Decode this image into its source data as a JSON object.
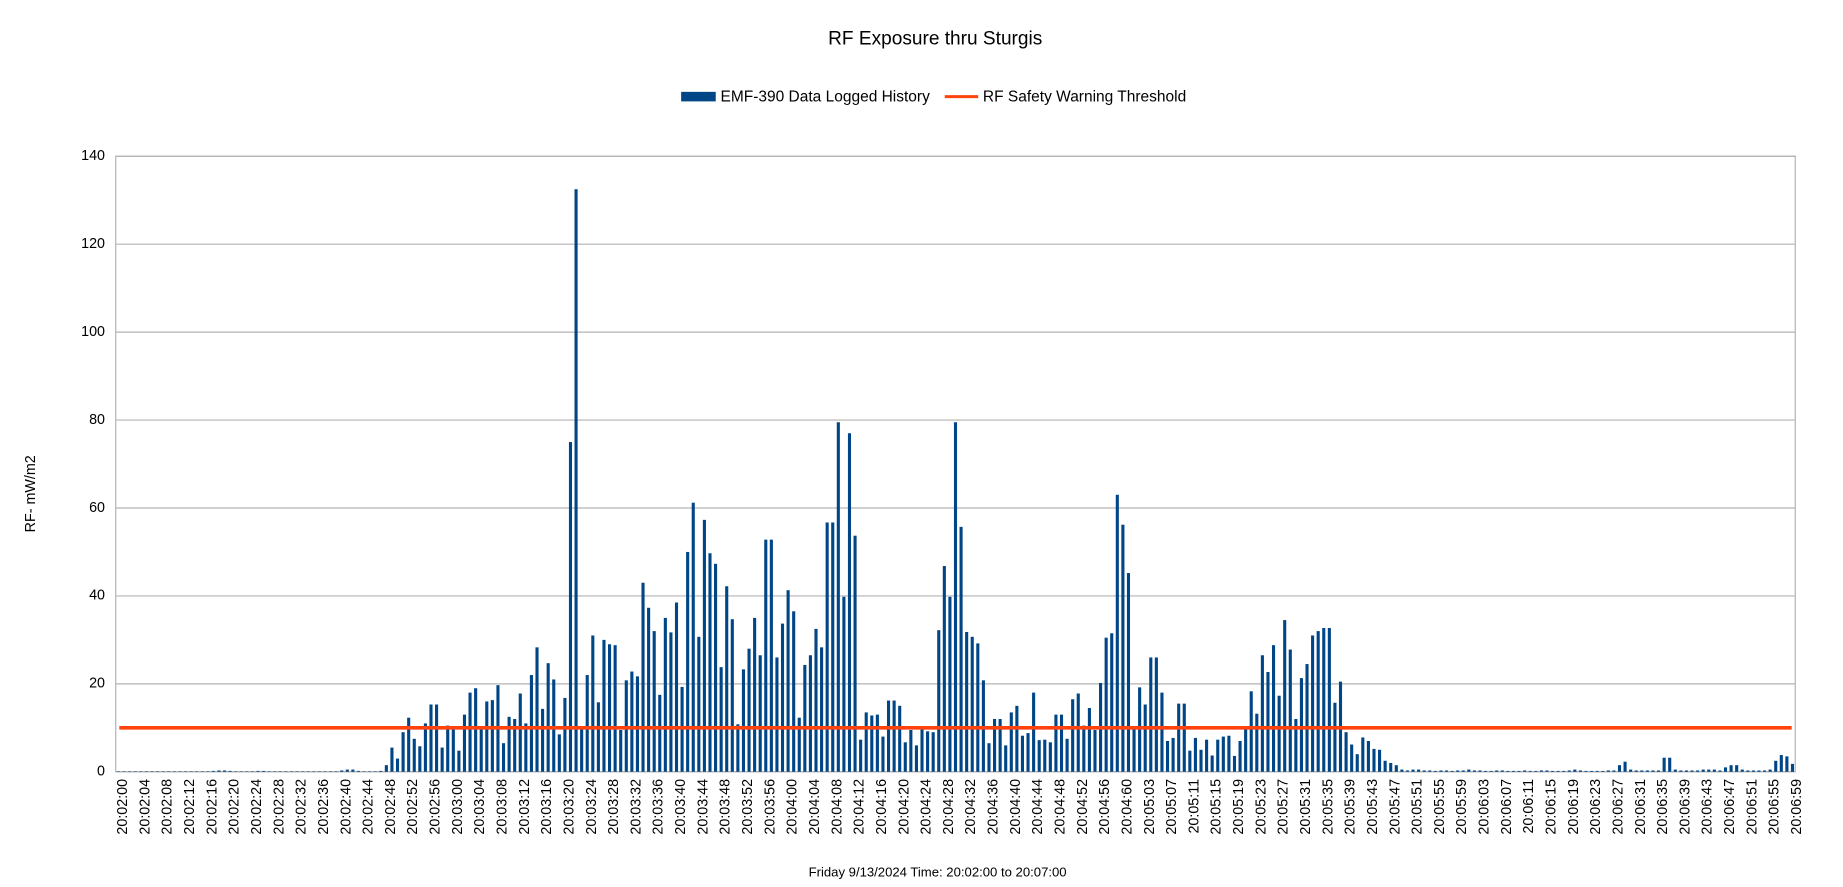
{
  "chart_data": {
    "type": "bar",
    "title": "RF Exposure thru Sturgis",
    "x_label": "Friday 9/13/2024 Time: 20:02:00 to 20:07:00",
    "y_label": "RF- mW/m2",
    "ylim": [
      0,
      140
    ],
    "yticks": [
      0,
      20,
      40,
      60,
      80,
      100,
      120,
      140
    ],
    "grid": true,
    "legend": "top",
    "categories": [
      "20:02:00",
      null,
      null,
      null,
      "20:02:04",
      null,
      null,
      null,
      "20:02:08",
      null,
      null,
      null,
      "20:02:12",
      null,
      null,
      null,
      "20:02:16",
      null,
      null,
      null,
      "20:02:20",
      null,
      null,
      null,
      "20:02:24",
      null,
      null,
      null,
      "20:02:28",
      null,
      null,
      null,
      "20:02:32",
      null,
      null,
      null,
      "20:02:36",
      null,
      null,
      null,
      "20:02:40",
      null,
      null,
      null,
      "20:02:44",
      null,
      null,
      null,
      "20:02:48",
      null,
      null,
      null,
      "20:02:52",
      null,
      null,
      null,
      "20:02:56",
      null,
      null,
      null,
      "20:03:00",
      null,
      null,
      null,
      "20:03:04",
      null,
      null,
      null,
      "20:03:08",
      null,
      null,
      null,
      "20:03:12",
      null,
      null,
      null,
      "20:03:16",
      null,
      null,
      null,
      "20:03:20",
      null,
      null,
      null,
      "20:03:24",
      null,
      null,
      null,
      "20:03:28",
      null,
      null,
      null,
      "20:03:32",
      null,
      null,
      null,
      "20:03:36",
      null,
      null,
      null,
      "20:03:40",
      null,
      null,
      null,
      "20:03:44",
      null,
      null,
      null,
      "20:03:48",
      null,
      null,
      null,
      "20:03:52",
      null,
      null,
      null,
      "20:03:56",
      null,
      null,
      null,
      "20:04:00",
      null,
      null,
      null,
      "20:04:04",
      null,
      null,
      null,
      "20:04:08",
      null,
      null,
      null,
      "20:04:12",
      null,
      null,
      null,
      "20:04:16",
      null,
      null,
      null,
      "20:04:20",
      null,
      null,
      null,
      "20:04:24",
      null,
      null,
      null,
      "20:04:28",
      null,
      null,
      null,
      "20:04:32",
      null,
      null,
      null,
      "20:04:36",
      null,
      null,
      null,
      "20:04:40",
      null,
      null,
      null,
      "20:04:44",
      null,
      null,
      null,
      "20:04:48",
      null,
      null,
      null,
      "20:04:52",
      null,
      null,
      null,
      "20:04:56",
      null,
      null,
      null,
      "20:04:60",
      null,
      null,
      null,
      "20:05:03",
      null,
      null,
      null,
      "20:05:07",
      null,
      null,
      null,
      "20:05:11",
      null,
      null,
      null,
      "20:05:15",
      null,
      null,
      null,
      "20:05:19",
      null,
      null,
      null,
      "20:05:23",
      null,
      null,
      null,
      "20:05:27",
      null,
      null,
      null,
      "20:05:31",
      null,
      null,
      null,
      "20:05:35",
      null,
      null,
      null,
      "20:05:39",
      null,
      null,
      null,
      "20:05:43",
      null,
      null,
      null,
      "20:05:47",
      null,
      null,
      null,
      "20:05:51",
      null,
      null,
      null,
      "20:05:55",
      null,
      null,
      null,
      "20:05:59",
      null,
      null,
      null,
      "20:06:03",
      null,
      null,
      null,
      "20:06:07",
      null,
      null,
      null,
      "20:06:11",
      null,
      null,
      null,
      "20:06:15",
      null,
      null,
      null,
      "20:06:19",
      null,
      null,
      null,
      "20:06:23",
      null,
      null,
      null,
      "20:06:27",
      null,
      null,
      null,
      "20:06:31",
      null,
      null,
      null,
      "20:06:35",
      null,
      null,
      null,
      "20:06:39",
      null,
      null,
      null,
      "20:06:43",
      null,
      null,
      null,
      "20:06:47",
      null,
      null,
      null,
      "20:06:51",
      null,
      null,
      null,
      "20:06:55",
      null,
      null,
      null,
      "20:06:59"
    ],
    "series": [
      {
        "name": "EMF-390 Data Logged History",
        "color": "#004586",
        "values": [
          0.1,
          0.1,
          0.1,
          0.1,
          0.1,
          0.1,
          0.1,
          0.1,
          0.1,
          0.1,
          0.1,
          0.1,
          0.1,
          0.1,
          0.1,
          0.1,
          0.1,
          0.2,
          0.3,
          0.3,
          0.2,
          0.1,
          0.1,
          0.1,
          0.1,
          0.2,
          0.2,
          0.1,
          0.1,
          0.1,
          0.1,
          0.1,
          0.1,
          0.1,
          0.1,
          0.1,
          0.1,
          0.1,
          0.1,
          0.1,
          0.3,
          0.5,
          0.5,
          0.2,
          0.1,
          0.1,
          0.1,
          0.2,
          1.5,
          5.5,
          3,
          9,
          12.3,
          7.5,
          5.8,
          11,
          15.3,
          15.3,
          5.5,
          10.5,
          10.3,
          4.8,
          13,
          18,
          19,
          10,
          16,
          16.3,
          19.7,
          6.5,
          12.5,
          12,
          17.8,
          11,
          22,
          28.3,
          14.3,
          24.7,
          21,
          8.5,
          16.8,
          75,
          132.5,
          10,
          22,
          31,
          15.8,
          30,
          29,
          28.8,
          9.5,
          20.8,
          22.8,
          21.7,
          43,
          37.3,
          32,
          17.5,
          35,
          31.7,
          38.5,
          19.3,
          50,
          61.2,
          30.7,
          57.3,
          49.7,
          47.3,
          23.8,
          42.2,
          34.7,
          10.8,
          23.3,
          28,
          35,
          26.5,
          52.8,
          52.8,
          26,
          33.7,
          41.3,
          36.5,
          12.3,
          24.3,
          26.5,
          32.5,
          28.3,
          56.7,
          56.7,
          79.5,
          39.8,
          77,
          53.7,
          7.3,
          13.5,
          12.8,
          13,
          8,
          16.2,
          16.2,
          15,
          6.7,
          9.5,
          6,
          10,
          9.2,
          9,
          32.2,
          46.8,
          39.8,
          79.5,
          55.7,
          31.8,
          30.7,
          29.2,
          20.8,
          6.5,
          12,
          12,
          6,
          13.5,
          15,
          8.2,
          8.8,
          18,
          7.2,
          7.3,
          6.7,
          13,
          13,
          7.5,
          16.5,
          17.8,
          10.5,
          14.5,
          9.5,
          20.2,
          30.5,
          31.5,
          63,
          56.2,
          45.2,
          10,
          19.2,
          15.3,
          26,
          26,
          18,
          7,
          7.7,
          15.5,
          15.5,
          4.8,
          7.7,
          5,
          7.3,
          3.7,
          7.3,
          8,
          8.2,
          3.6,
          7,
          10,
          18.3,
          13.2,
          26.5,
          22.7,
          28.8,
          17.3,
          34.5,
          27.8,
          12,
          21.3,
          24.5,
          31,
          32,
          32.7,
          32.7,
          15.7,
          20.5,
          9,
          6.2,
          4,
          7.8,
          7,
          5.2,
          5,
          2.5,
          2,
          1.5,
          0.5,
          0.3,
          0.5,
          0.5,
          0.3,
          0.3,
          0.2,
          0.3,
          0.3,
          0.2,
          0.3,
          0.3,
          0.5,
          0.3,
          0.3,
          0.2,
          0.2,
          0.3,
          0.3,
          0.2,
          0.2,
          0.2,
          0.3,
          0.2,
          0.2,
          0.3,
          0.3,
          0.2,
          0.2,
          0.2,
          0.3,
          0.5,
          0.3,
          0.2,
          0.2,
          0.2,
          0.2,
          0.3,
          0.3,
          1.5,
          2.3,
          0.5,
          0.3,
          0.3,
          0.3,
          0.3,
          0.3,
          3.2,
          3.2,
          0.5,
          0.3,
          0.3,
          0.3,
          0.3,
          0.5,
          0.5,
          0.5,
          0.3,
          1,
          1.5,
          1.5,
          0.5,
          0.3,
          0.3,
          0.3,
          0.3,
          0.5,
          2.5,
          3.8,
          3.5,
          1.8
        ]
      }
    ],
    "threshold": {
      "name": "RF Safety Warning Threshold",
      "color": "#ff420e",
      "value": 10
    }
  }
}
